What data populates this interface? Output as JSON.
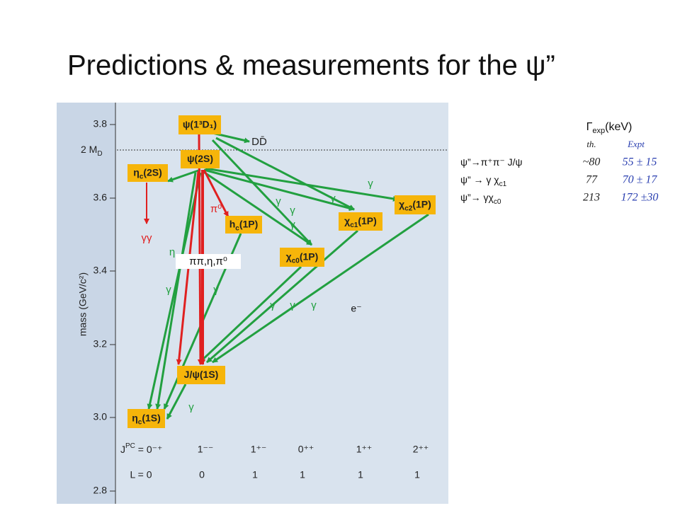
{
  "title": "Predictions & measurements for the ψ”",
  "diagram": {
    "axis_label": "mass (GeV/c²)",
    "yticks": [
      "3.8",
      "3.6",
      "3.4",
      "3.2",
      "3.0",
      "2.8"
    ],
    "threshold": [
      "2 M",
      "D"
    ],
    "states": [
      [
        "ψ(1³D₁)"
      ],
      [
        "ψ(2S)"
      ],
      [
        "η",
        "c",
        "(2S)"
      ],
      [
        "h",
        "c",
        "(1P)"
      ],
      [
        "χ",
        "c0",
        "(1P)"
      ],
      [
        "χ",
        "c1",
        "(1P)"
      ],
      [
        "χ",
        "c2",
        "(1P)"
      ],
      [
        "J/ψ(1S)"
      ],
      [
        "η",
        "c",
        "(1S)"
      ]
    ],
    "transitions": [
      "DD̄",
      "γγ",
      "π⁰",
      "η",
      "ππ,η,π⁰",
      "γ",
      "γ",
      "γ",
      "γ",
      "γ",
      "γ",
      "γ",
      "γ",
      "γ",
      "γ",
      "γ"
    ],
    "jpc_label": [
      "J",
      "PC",
      " = 0⁻⁺"
    ],
    "jpc": [
      "1⁻⁻",
      "1⁺⁻",
      "0⁺⁺",
      "1⁺⁺",
      "2⁺⁺"
    ],
    "L": [
      "L = 0",
      "0",
      "1",
      "1",
      "1",
      "1"
    ],
    "electron": "e⁻"
  },
  "table": {
    "header": [
      "Γ",
      "exp",
      "(keV)"
    ],
    "columns": [
      "th.",
      "Expt"
    ],
    "rows": [
      {
        "decay": [
          "ψ”→π⁺π⁻ J/ψ"
        ],
        "th": "~80",
        "expt": "55 ± 15"
      },
      {
        "decay": [
          "ψ” → γ χ",
          "c1"
        ],
        "th": "77",
        "expt": "70 ± 17"
      },
      {
        "decay": [
          "ψ”→ γχ",
          "c0"
        ],
        "th": "213",
        "expt": "172 ±30"
      }
    ]
  }
}
